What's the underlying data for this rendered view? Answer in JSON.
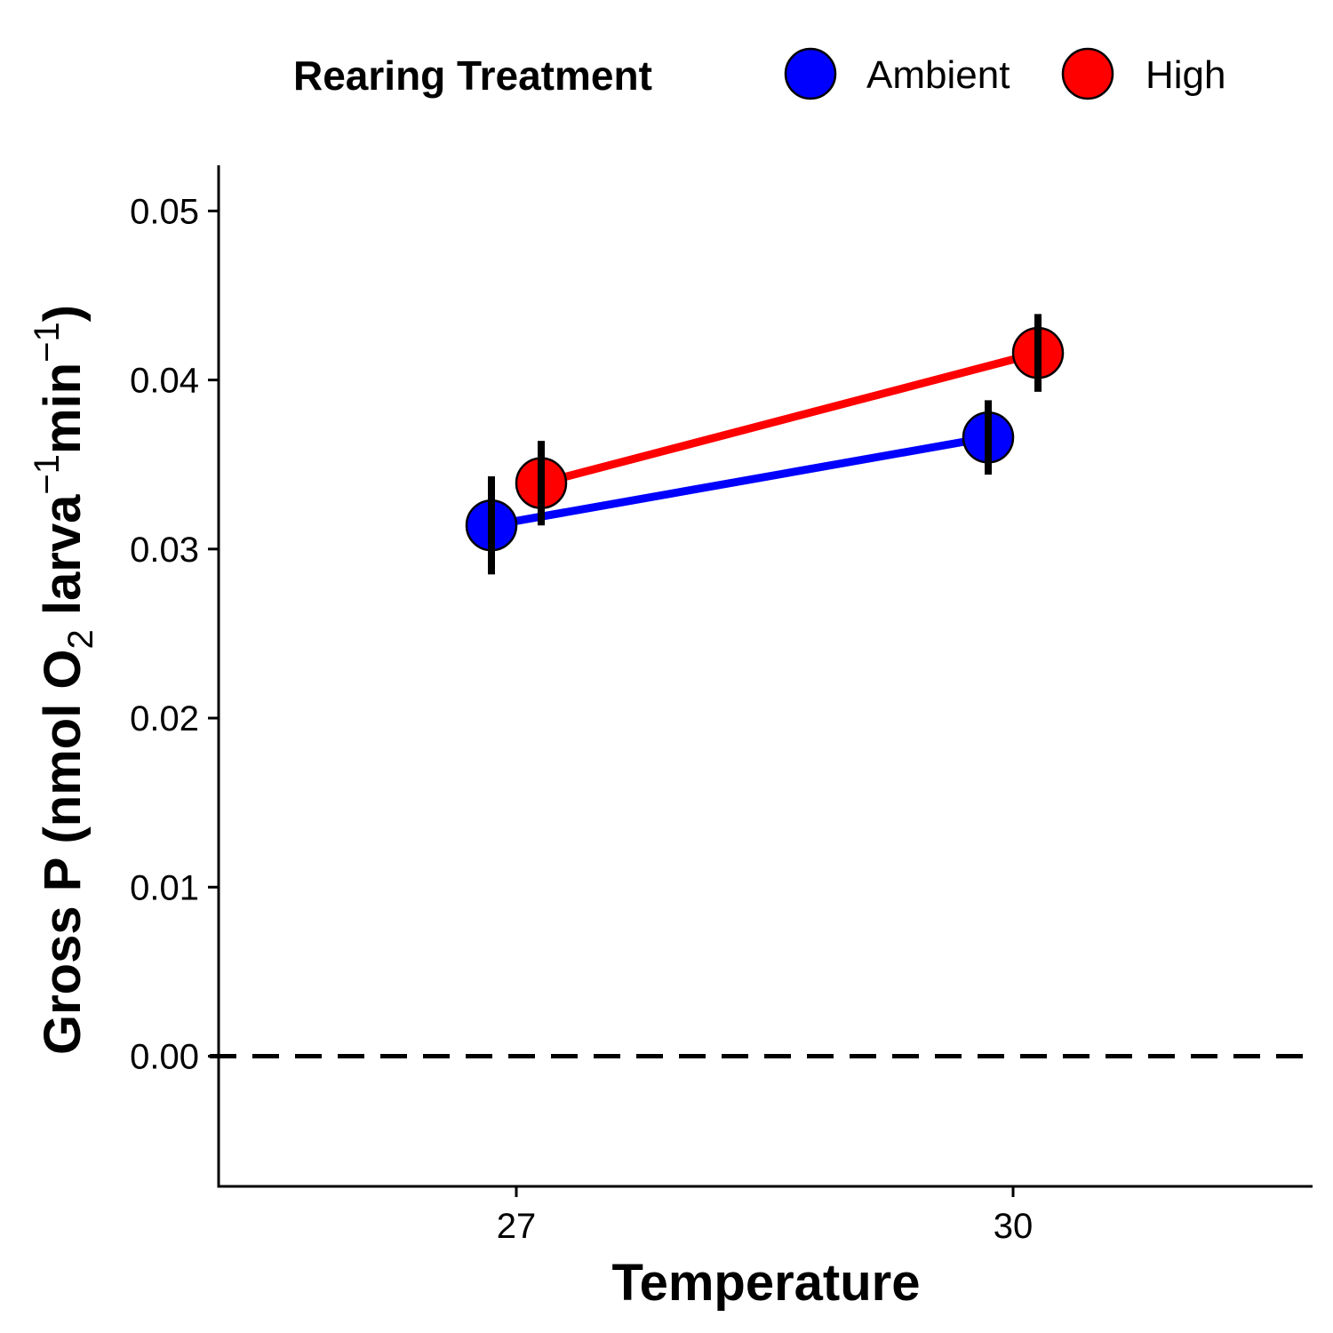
{
  "chart_data": {
    "type": "line",
    "xlabel": "Temperature",
    "ylabel": {
      "text": "Gross P (nmol O2 larva-1 min-1)",
      "parts": [
        "Gross P (nmol O",
        "2",
        " larva",
        "−1",
        "min",
        "−1",
        ")"
      ]
    },
    "x_categories": [
      "27",
      "30"
    ],
    "yticks": [
      "0.00",
      "0.01",
      "0.02",
      "0.03",
      "0.04",
      "0.05"
    ],
    "ylim": [
      -0.0077,
      0.0527
    ],
    "reference_line": {
      "y": 0,
      "style": "dashed",
      "color": "#000000"
    },
    "legend": {
      "title": "Rearing Treatment",
      "position": "top"
    },
    "series": [
      {
        "name": "Ambient",
        "color": "#0000FF",
        "points": [
          {
            "x": "27",
            "y": 0.0314,
            "err_low": 0.0285,
            "err_high": 0.0343
          },
          {
            "x": "30",
            "y": 0.0366,
            "err_low": 0.0344,
            "err_high": 0.0388
          }
        ]
      },
      {
        "name": "High",
        "color": "#FF0000",
        "points": [
          {
            "x": "27",
            "y": 0.0339,
            "err_low": 0.0314,
            "err_high": 0.0364
          },
          {
            "x": "30",
            "y": 0.0416,
            "err_low": 0.0393,
            "err_high": 0.0439
          }
        ]
      }
    ]
  }
}
